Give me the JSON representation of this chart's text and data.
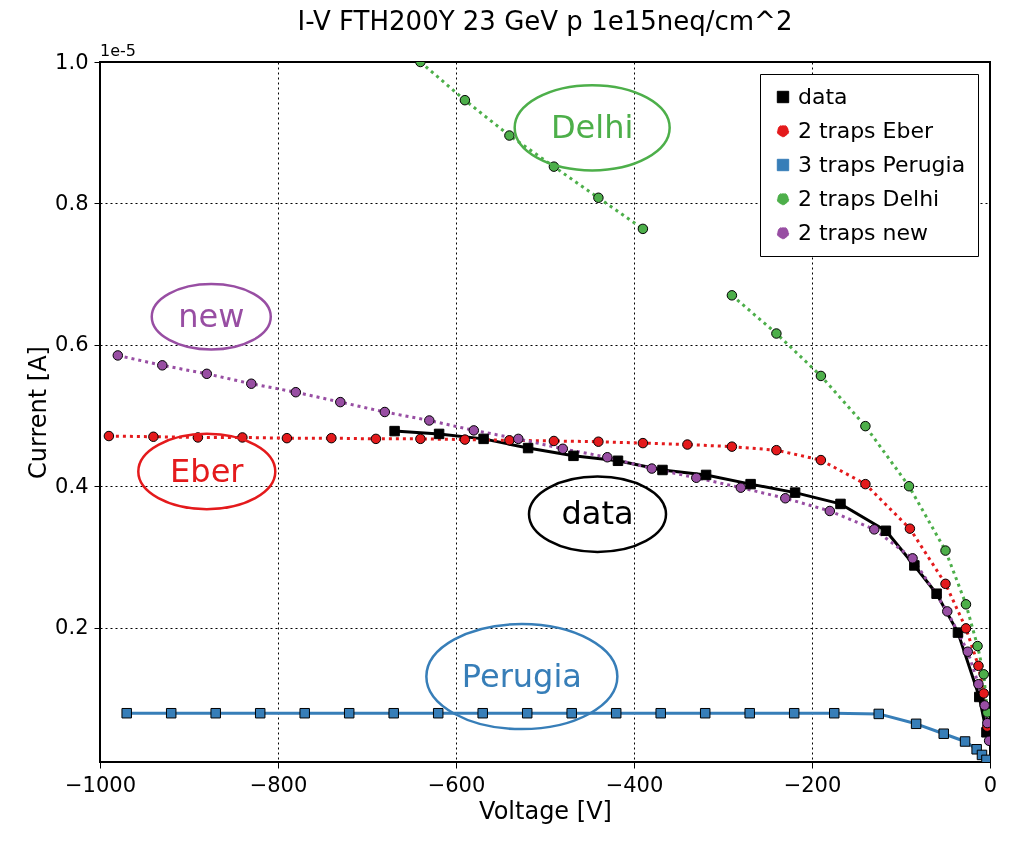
{
  "chart_data": {
    "type": "line",
    "title": "I-V FTH200Y 23 GeV p 1e15neq/cm^2",
    "xlabel": "Voltage [V]",
    "ylabel": "Current [A]",
    "xlim": [
      -1000,
      0
    ],
    "ylim": [
      0.01,
      1.0
    ],
    "xticks": [
      -1000,
      -800,
      -600,
      -400,
      -200,
      0
    ],
    "yticks": [
      0.2,
      0.4,
      0.6,
      0.8,
      {
        "value": 1.0,
        "label": "1.0"
      }
    ],
    "grid": true,
    "legend": "top right",
    "series": [
      {
        "name": "data",
        "color": "#000000",
        "marker": "square",
        "line_style": "solid",
        "x": [
          -669,
          -619,
          -569,
          -519,
          -468,
          -418,
          -368,
          -319,
          -269,
          -219,
          -168,
          -117,
          -85,
          -60,
          -36,
          -12,
          -4
        ],
        "values": [
          0.478,
          0.474,
          0.467,
          0.454,
          0.443,
          0.436,
          0.423,
          0.416,
          0.403,
          0.391,
          0.375,
          0.337,
          0.288,
          0.248,
          0.193,
          0.102,
          0.052
        ]
      },
      {
        "name": "2 traps Eber",
        "color": "#e41a1c",
        "marker": "circle",
        "line_style": "dotted",
        "x": [
          -990,
          -940,
          -890,
          -840,
          -790,
          -740,
          -690,
          -640,
          -590,
          -540,
          -490,
          -440,
          -390,
          -340,
          -290,
          -240,
          -190,
          -140,
          -90,
          -50,
          -27,
          -13,
          -7,
          -3
        ],
        "values": [
          0.471,
          0.47,
          0.469,
          0.469,
          0.468,
          0.468,
          0.467,
          0.467,
          0.466,
          0.465,
          0.464,
          0.463,
          0.461,
          0.459,
          0.456,
          0.451,
          0.437,
          0.403,
          0.34,
          0.262,
          0.199,
          0.146,
          0.107,
          0.06
        ]
      },
      {
        "name": "3 traps Perugia",
        "color": "#377eb8",
        "marker": "square",
        "line_style": "solid",
        "x": [
          -970,
          -920,
          -870,
          -820,
          -770,
          -720,
          -670,
          -620,
          -570,
          -520,
          -470,
          -420,
          -370,
          -320,
          -270,
          -220,
          -175,
          -125,
          -83,
          -52,
          -28,
          -15,
          -9,
          -4
        ],
        "values": [
          0.079,
          0.079,
          0.079,
          0.079,
          0.079,
          0.079,
          0.079,
          0.079,
          0.079,
          0.079,
          0.079,
          0.079,
          0.079,
          0.079,
          0.079,
          0.079,
          0.079,
          0.078,
          0.064,
          0.05,
          0.039,
          0.028,
          0.02,
          0.013
        ]
      },
      {
        "name": "2 traps Delhi",
        "color": "#4daf4a",
        "marker": "circle",
        "line_style": "dotted",
        "x": [
          -640,
          -590,
          -540,
          -490,
          -440,
          -390,
          -340,
          -290,
          -240,
          -190,
          -140,
          -91,
          -50,
          -27,
          -14,
          -7,
          -3
        ],
        "values": [
          1.0,
          0.946,
          0.896,
          0.852,
          0.808,
          0.764,
          null,
          0.67,
          0.616,
          0.556,
          0.485,
          0.4,
          0.309,
          0.233,
          0.174,
          0.134,
          0.08
        ]
      },
      {
        "name": "2 traps new",
        "color": "#984ea3",
        "marker": "circle",
        "line_style": "dotted",
        "x": [
          -980,
          -930,
          -880,
          -830,
          -780,
          -730,
          -680,
          -630,
          -580,
          -530,
          -480,
          -430,
          -380,
          -330,
          -280,
          -230,
          -180,
          -130,
          -87,
          -48,
          -25,
          -13,
          -6,
          -3,
          -1
        ],
        "values": [
          0.585,
          0.571,
          0.559,
          0.545,
          0.533,
          0.519,
          0.505,
          0.493,
          0.479,
          0.467,
          0.453,
          0.441,
          0.425,
          0.412,
          0.398,
          0.383,
          0.365,
          0.339,
          0.298,
          0.223,
          0.166,
          0.12,
          0.09,
          0.065,
          0.04
        ]
      }
    ],
    "annotations": [
      "1e-5",
      "data",
      "Eber",
      "Perugia",
      "Delhi",
      "new"
    ]
  }
}
